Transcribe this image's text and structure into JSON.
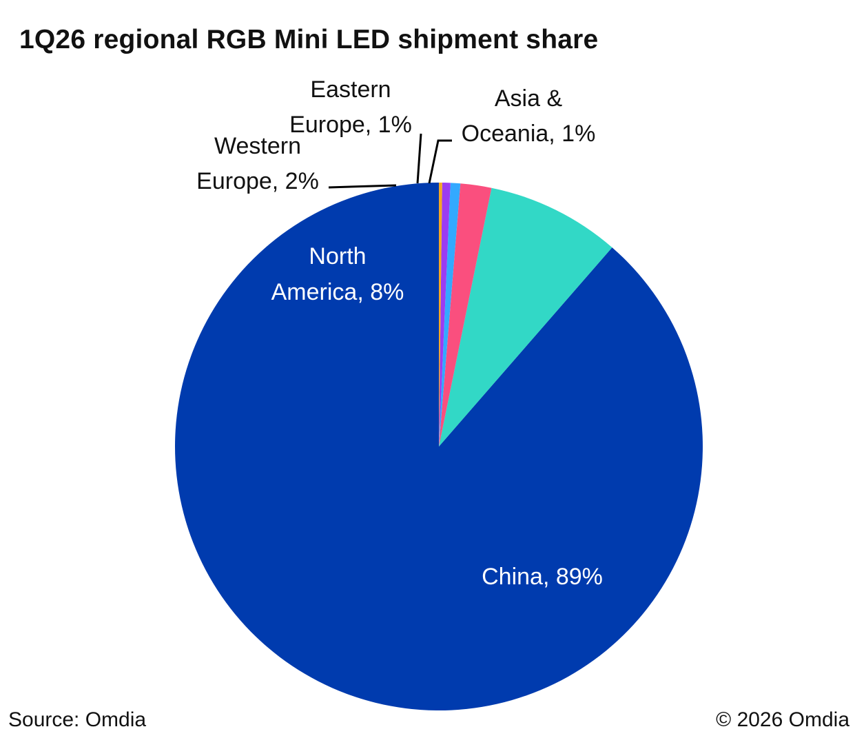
{
  "chart_data": {
    "type": "pie",
    "title": "1Q26 regional RGB Mini LED shipment share",
    "slices": [
      {
        "key": "china",
        "label": "China, 89%",
        "label_lines": [
          "China, 89%"
        ],
        "value": 88.6,
        "color": "#003BAE",
        "label_color": "#ffffff"
      },
      {
        "key": "north-america",
        "label": "North America, 8%",
        "label_lines": [
          "North",
          "America, 8%"
        ],
        "value": 8.2,
        "color": "#32D8C6",
        "label_color": "#ffffff"
      },
      {
        "key": "western-europe",
        "label": "Western Europe, 2%",
        "label_lines": [
          "Western",
          "Europe, 2%"
        ],
        "value": 1.9,
        "color": "#FA4F7E",
        "label_color": "#111111"
      },
      {
        "key": "eastern-europe",
        "label": "Eastern Europe, 1%",
        "label_lines": [
          "Eastern",
          "Europe, 1%"
        ],
        "value": 0.6,
        "color": "#33A9FF",
        "label_color": "#111111"
      },
      {
        "key": "asia-oceania",
        "label": "Asia & Oceania, 1%",
        "label_lines": [
          "Asia &",
          "Oceania, 1%"
        ],
        "value": 0.5,
        "color": "#9B3CF2",
        "label_color": "#111111"
      },
      {
        "key": "other",
        "label": "",
        "label_lines": [],
        "value": 0.2,
        "color": "#F5A623",
        "label_color": "#111111"
      }
    ],
    "start_angle": "12 o'clock",
    "direction": "counterclockwise",
    "legend": "none"
  },
  "footer": {
    "source": "Source: Omdia",
    "copyright": "© 2026 Omdia"
  }
}
